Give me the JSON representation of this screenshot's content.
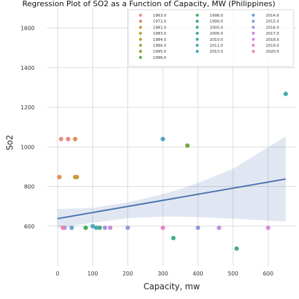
{
  "chart_data": {
    "type": "scatter",
    "title": "Regression Plot of SO2 as a Function of Capacity, MW (Philippines)",
    "xlabel": "Capacity, mw",
    "ylabel": "So2",
    "xlim": [
      -30,
      680
    ],
    "ylim": [
      400,
      1700
    ],
    "x_ticks": [
      0,
      100,
      200,
      300,
      400,
      500,
      600
    ],
    "y_ticks": [
      600,
      800,
      1000,
      1200,
      1400,
      1600
    ],
    "grid": true,
    "legend_position": "top-right",
    "series": [
      {
        "name": "1963.0",
        "color": "#e78a84",
        "points": [
          [
            10,
            1040
          ],
          [
            30,
            1040
          ]
        ]
      },
      {
        "name": "1971.0",
        "color": "#e08e58",
        "points": [
          [
            5,
            848
          ],
          [
            50,
            1040
          ]
        ]
      },
      {
        "name": "1981.0",
        "color": "#d6963f",
        "points": [
          [
            50,
            848
          ]
        ]
      },
      {
        "name": "1983.0",
        "color": "#c79d3b",
        "points": [
          [
            55,
            848
          ]
        ]
      },
      {
        "name": "1984.0",
        "color": "#b6a23a",
        "points": []
      },
      {
        "name": "1986.0",
        "color": "#a2a63a",
        "points": []
      },
      {
        "name": "1995.0",
        "color": "#8baa3c",
        "points": []
      },
      {
        "name": "1996.0",
        "color": "#6fa93e",
        "points": [
          [
            370,
            1007
          ]
        ]
      },
      {
        "name": "1998.0",
        "color": "#45ad5c",
        "points": [
          [
            80,
            592
          ]
        ]
      },
      {
        "name": "1999.0",
        "color": "#43ad77",
        "points": [
          [
            120,
            592
          ]
        ]
      },
      {
        "name": "2000.0",
        "color": "#44ad8b",
        "points": [
          [
            330,
            540
          ]
        ]
      },
      {
        "name": "2006.0",
        "color": "#45ab9b",
        "points": [
          [
            510,
            487
          ]
        ]
      },
      {
        "name": "2010.0",
        "color": "#46aaa9",
        "points": [
          [
            650,
            1268
          ]
        ]
      },
      {
        "name": "2011.0",
        "color": "#48a9b6",
        "points": [
          [
            100,
            600
          ],
          [
            110,
            592
          ]
        ]
      },
      {
        "name": "2013.0",
        "color": "#4aa7c2",
        "points": [
          [
            300,
            1040
          ]
        ]
      },
      {
        "name": "2014.0",
        "color": "#6ba4d6",
        "points": [
          [
            40,
            592
          ]
        ]
      },
      {
        "name": "2015.0",
        "color": "#8e9be0",
        "points": [
          [
            200,
            592
          ],
          [
            400,
            592
          ]
        ]
      },
      {
        "name": "2016.0",
        "color": "#a995e2",
        "points": [
          [
            20,
            592
          ],
          [
            135,
            592
          ]
        ]
      },
      {
        "name": "2017.0",
        "color": "#c48ee0",
        "points": [
          [
            150,
            592
          ],
          [
            460,
            592
          ]
        ]
      },
      {
        "name": "2018.0",
        "color": "#d98ad8",
        "points": [
          [
            600,
            592
          ]
        ]
      },
      {
        "name": "2019.0",
        "color": "#e487c6",
        "points": [
          [
            300,
            592
          ]
        ]
      },
      {
        "name": "2020.0",
        "color": "#e888b0",
        "points": [
          [
            15,
            592
          ]
        ]
      }
    ],
    "regression": {
      "color": "#4c72b0",
      "line": [
        [
          0,
          638
        ],
        [
          650,
          838
        ]
      ],
      "ci_band": {
        "x": [
          0,
          100,
          200,
          300,
          350,
          400,
          500,
          650
        ],
        "lower": [
          590,
          618,
          640,
          648,
          648,
          645,
          638,
          623
        ],
        "upper": [
          686,
          692,
          720,
          762,
          788,
          818,
          890,
          1053
        ]
      }
    }
  }
}
